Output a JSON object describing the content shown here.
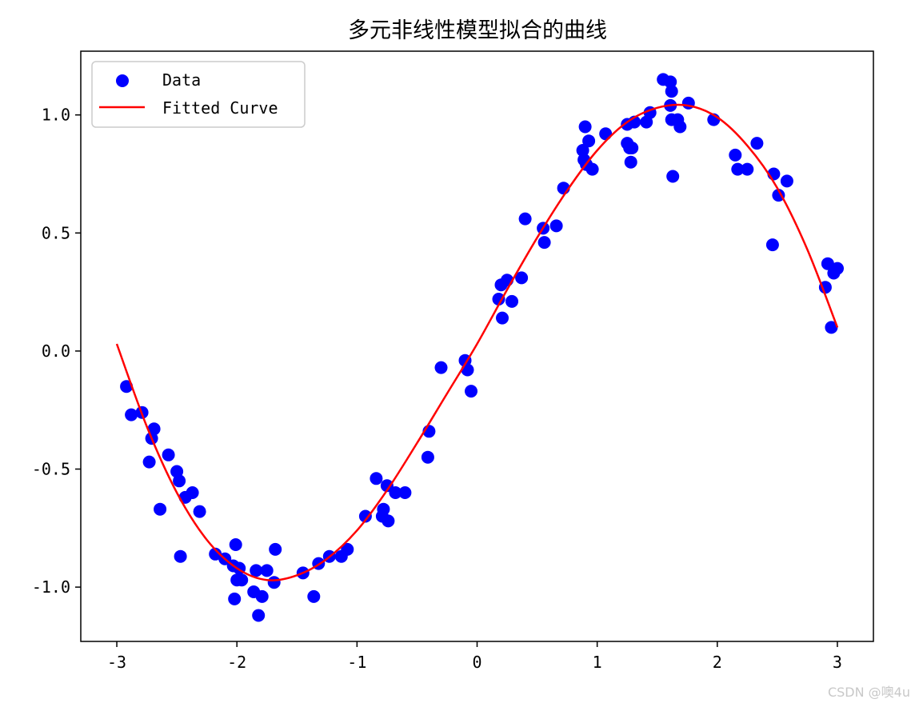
{
  "chart_data": {
    "type": "scatter",
    "title": "多元非线性模型拟合的曲线",
    "xlabel": "",
    "ylabel": "",
    "xlim": [
      -3.3,
      3.3
    ],
    "ylim": [
      -1.23,
      1.27
    ],
    "xticks": [
      -3,
      -2,
      -1,
      0,
      1,
      2,
      3
    ],
    "xtick_labels": [
      "-3",
      "-2",
      "-1",
      "0",
      "1",
      "2",
      "3"
    ],
    "yticks": [
      -1.0,
      -0.5,
      0.0,
      0.5,
      1.0
    ],
    "ytick_labels": [
      "-1.0",
      "-0.5",
      "0.0",
      "0.5",
      "1.0"
    ],
    "grid": false,
    "legend": {
      "position": "upper-left",
      "entries": [
        "Data",
        "Fitted Curve"
      ]
    },
    "series": [
      {
        "name": "Data",
        "kind": "scatter",
        "color": "#0000ff",
        "x": [
          -2.92,
          -2.88,
          -2.79,
          -2.73,
          -2.71,
          -2.69,
          -2.64,
          -2.57,
          -2.5,
          -2.48,
          -2.47,
          -2.43,
          -2.37,
          -2.31,
          -2.18,
          -2.1,
          -2.03,
          -2.02,
          -2.01,
          -2.0,
          -1.98,
          -1.96,
          -1.86,
          -1.84,
          -1.82,
          -1.79,
          -1.75,
          -1.69,
          -1.68,
          -1.45,
          -1.36,
          -1.32,
          -1.23,
          -1.13,
          -1.08,
          -0.93,
          -0.84,
          -0.79,
          -0.78,
          -0.75,
          -0.74,
          -0.68,
          -0.6,
          -0.41,
          -0.4,
          -0.3,
          -0.1,
          -0.08,
          -0.05,
          0.18,
          0.2,
          0.21,
          0.25,
          0.29,
          0.37,
          0.4,
          0.55,
          0.56,
          0.66,
          0.72,
          0.88,
          0.89,
          0.9,
          0.91,
          0.93,
          0.96,
          1.07,
          1.25,
          1.25,
          1.27,
          1.28,
          1.29,
          1.31,
          1.41,
          1.44,
          1.55,
          1.61,
          1.61,
          1.62,
          1.62,
          1.63,
          1.67,
          1.69,
          1.76,
          1.97,
          2.15,
          2.17,
          2.25,
          2.33,
          2.46,
          2.47,
          2.51,
          2.58,
          2.9,
          2.92,
          2.95,
          2.97,
          3.0
        ],
        "y": [
          -0.15,
          -0.27,
          -0.26,
          -0.47,
          -0.37,
          -0.33,
          -0.67,
          -0.44,
          -0.51,
          -0.55,
          -0.87,
          -0.62,
          -0.6,
          -0.68,
          -0.86,
          -0.88,
          -0.91,
          -1.05,
          -0.82,
          -0.97,
          -0.92,
          -0.97,
          -1.02,
          -0.93,
          -1.12,
          -1.04,
          -0.93,
          -0.98,
          -0.84,
          -0.94,
          -1.04,
          -0.9,
          -0.87,
          -0.87,
          -0.84,
          -0.7,
          -0.54,
          -0.7,
          -0.67,
          -0.57,
          -0.72,
          -0.6,
          -0.6,
          -0.45,
          -0.34,
          -0.07,
          -0.04,
          -0.08,
          -0.17,
          0.22,
          0.28,
          0.14,
          0.3,
          0.21,
          0.31,
          0.56,
          0.52,
          0.46,
          0.53,
          0.69,
          0.85,
          0.81,
          0.95,
          0.79,
          0.89,
          0.77,
          0.92,
          0.88,
          0.96,
          0.86,
          0.8,
          0.86,
          0.97,
          0.97,
          1.01,
          1.15,
          1.14,
          1.04,
          0.98,
          1.1,
          0.74,
          0.98,
          0.95,
          1.05,
          0.98,
          0.83,
          0.77,
          0.77,
          0.88,
          0.45,
          0.75,
          0.66,
          0.72,
          0.27,
          0.37,
          0.1,
          0.33,
          0.35
        ]
      },
      {
        "name": "Fitted Curve",
        "kind": "line",
        "color": "#ff0000",
        "x": [
          -3.0,
          -2.75,
          -2.5,
          -2.25,
          -2.0,
          -1.75,
          -1.5,
          -1.25,
          -1.0,
          -0.75,
          -0.5,
          -0.25,
          0.0,
          0.25,
          0.5,
          0.75,
          1.0,
          1.25,
          1.5,
          1.75,
          2.0,
          2.25,
          2.5,
          2.75,
          3.0
        ],
        "y": [
          0.03,
          -0.32,
          -0.6,
          -0.8,
          -0.92,
          -0.97,
          -0.95,
          -0.88,
          -0.76,
          -0.59,
          -0.39,
          -0.18,
          0.03,
          0.26,
          0.48,
          0.68,
          0.85,
          0.97,
          1.03,
          1.04,
          0.99,
          0.87,
          0.69,
          0.43,
          0.1
        ]
      }
    ]
  },
  "watermark": "CSDN @噢4u"
}
